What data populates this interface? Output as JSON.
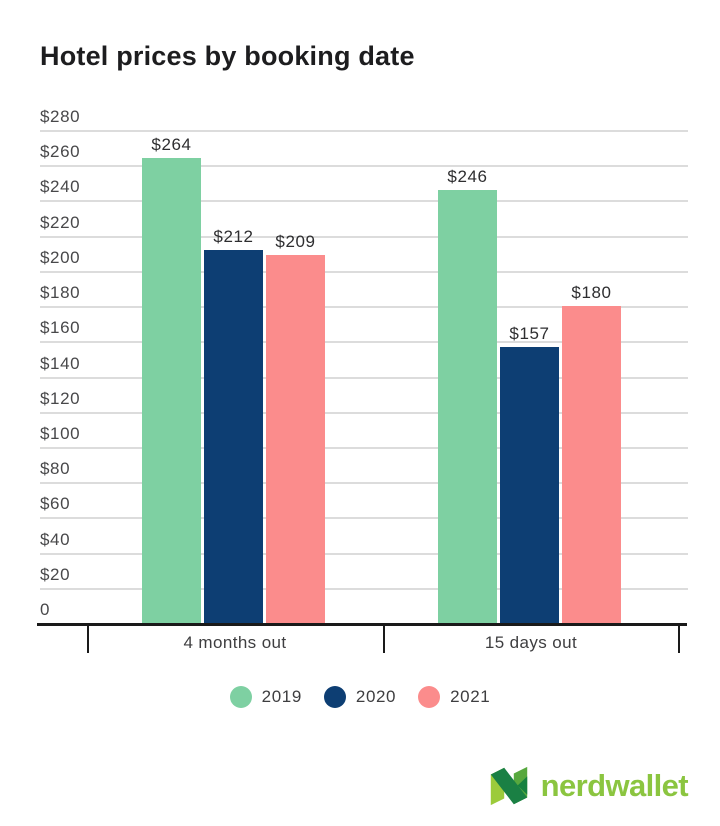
{
  "header": {
    "title": "Hotel prices by booking date"
  },
  "chart_data": {
    "type": "bar",
    "title": "Hotel prices by booking date",
    "categories": [
      "4 months out",
      "15 days out"
    ],
    "series": [
      {
        "name": "2019",
        "color": "#7ed0a2",
        "values": [
          264,
          246
        ]
      },
      {
        "name": "2020",
        "color": "#0d3e73",
        "values": [
          212,
          157
        ]
      },
      {
        "name": "2021",
        "color": "#fb8c8c",
        "values": [
          209,
          180
        ]
      }
    ],
    "value_prefix": "$",
    "value_labels": [
      [
        "$264",
        "$246"
      ],
      [
        "$212",
        "$157"
      ],
      [
        "$209",
        "$180"
      ]
    ],
    "ylim": [
      0,
      280
    ],
    "y_tick_step": 20,
    "y_tick_labels": [
      "0",
      "$20",
      "$40",
      "$60",
      "$80",
      "$100",
      "$120",
      "$140",
      "$160",
      "$180",
      "$200",
      "$220",
      "$240",
      "$260",
      "$280"
    ],
    "grid": "horizontal",
    "legend_position": "bottom",
    "colors": {
      "gridline": "#dcdcdc",
      "axis": "#1a1a1a",
      "label_text": "#48484a"
    }
  },
  "footer": {
    "brand": "nerdwallet",
    "brand_color": "#8bc540"
  }
}
